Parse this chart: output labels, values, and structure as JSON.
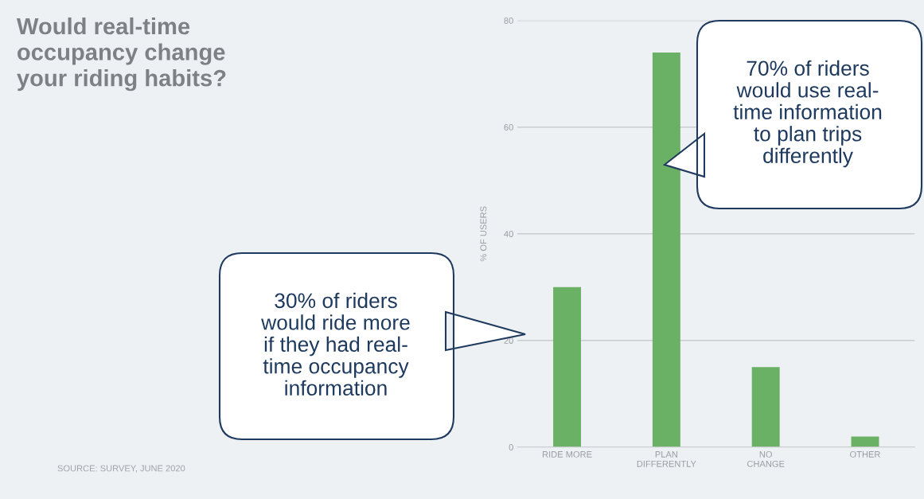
{
  "chart_data": {
    "type": "bar",
    "title": "Would real-time\noccupancy change\nyour riding habits?",
    "categories": [
      "RIDE MORE",
      "PLAN\nDIFFERENTLY",
      "NO\nCHANGE",
      "OTHER"
    ],
    "values": [
      30,
      74,
      15,
      2
    ],
    "color": "#6ab165",
    "ylabel": "% OF USERS",
    "ylim": [
      0,
      80
    ],
    "yticks": [
      0,
      20,
      40,
      60,
      80
    ],
    "grid": "y",
    "annotations": [
      "30% of riders\nwould ride more\nif they had real-\ntime occupancy\ninformation",
      "70% of riders\nwould use real-\ntime information\nto plan trips\ndifferently",
      "SOURCE: SURVEY, JUNE 2020"
    ]
  }
}
